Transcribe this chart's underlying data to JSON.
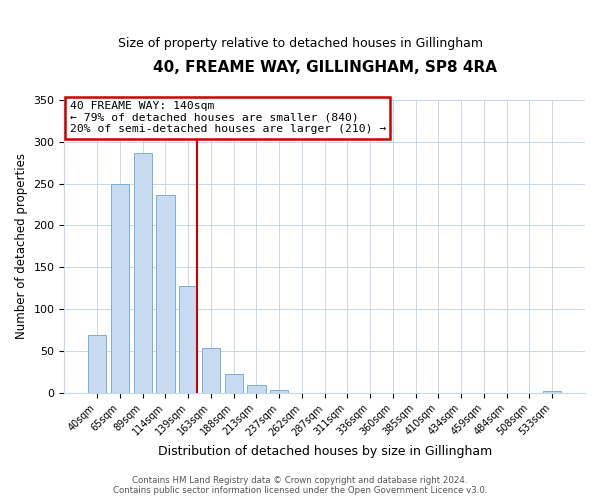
{
  "title": "40, FREAME WAY, GILLINGHAM, SP8 4RA",
  "subtitle": "Size of property relative to detached houses in Gillingham",
  "xlabel": "Distribution of detached houses by size in Gillingham",
  "ylabel": "Number of detached properties",
  "bar_labels": [
    "40sqm",
    "65sqm",
    "89sqm",
    "114sqm",
    "139sqm",
    "163sqm",
    "188sqm",
    "213sqm",
    "237sqm",
    "262sqm",
    "287sqm",
    "311sqm",
    "336sqm",
    "360sqm",
    "385sqm",
    "410sqm",
    "434sqm",
    "459sqm",
    "484sqm",
    "508sqm",
    "533sqm"
  ],
  "bar_values": [
    69,
    250,
    287,
    236,
    128,
    54,
    22,
    10,
    4,
    0,
    0,
    0,
    0,
    0,
    0,
    0,
    0,
    0,
    0,
    0,
    2
  ],
  "bar_color": "#c8daf0",
  "bar_edge_color": "#7bafd4",
  "ylim": [
    0,
    350
  ],
  "yticks": [
    0,
    50,
    100,
    150,
    200,
    250,
    300,
    350
  ],
  "annotation_title": "40 FREAME WAY: 140sqm",
  "annotation_line1": "← 79% of detached houses are smaller (840)",
  "annotation_line2": "20% of semi-detached houses are larger (210) →",
  "annotation_box_color": "#ffffff",
  "annotation_box_edge": "#cc0000",
  "footer1": "Contains HM Land Registry data © Crown copyright and database right 2024.",
  "footer2": "Contains public sector information licensed under the Open Government Licence v3.0.",
  "property_bar_index": 4,
  "vline_color": "#cc0000"
}
